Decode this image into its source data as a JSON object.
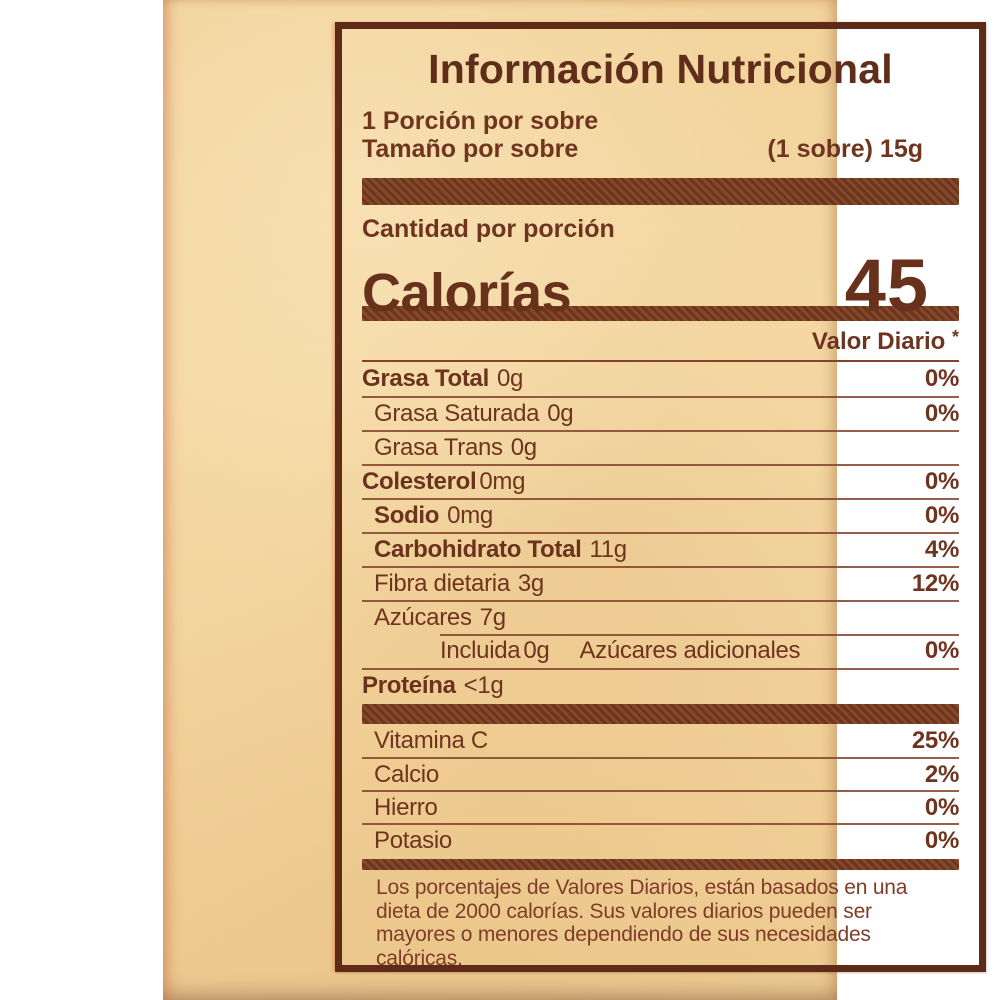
{
  "label": {
    "title": "Información Nutricional",
    "serving": {
      "per_container": "1 Porción por sobre",
      "size_label": "Tamaño por sobre",
      "size_value": "(1 sobre) 15g"
    },
    "amount_per_serving": "Cantidad por porción",
    "calories_label": "Calorías",
    "calories_value": "45",
    "daily_value_header": "Valor Diario",
    "daily_value_asterisk": "*",
    "nutrients": [
      {
        "name": "Grasa Total",
        "amount": "0g",
        "dv": "0%"
      },
      {
        "name": "Grasa Saturada",
        "amount": "0g",
        "dv": "0%"
      },
      {
        "name": "Grasa Trans",
        "amount": "0g",
        "dv": ""
      },
      {
        "name": "Colesterol",
        "amount": "0mg",
        "dv": "0%"
      },
      {
        "name": "Sodio",
        "amount": "0mg",
        "dv": "0%"
      },
      {
        "name": "Carbohidrato Total",
        "amount": "11g",
        "dv": "4%"
      },
      {
        "name": "Fibra dietaria",
        "amount": "3g",
        "dv": "12%"
      },
      {
        "name": "Azúcares",
        "amount": "7g",
        "dv": ""
      },
      {
        "name": "Incluida",
        "amount": "0g",
        "extra": "Azúcares adicionales",
        "dv": "0%"
      },
      {
        "name": "Proteína",
        "amount": "<1g",
        "dv": ""
      }
    ],
    "vitamins": [
      {
        "name": "Vitamina C",
        "dv": "25%"
      },
      {
        "name": "Calcio",
        "dv": "2%"
      },
      {
        "name": "Hierro",
        "dv": "0%"
      },
      {
        "name": "Potasio",
        "dv": "0%"
      }
    ],
    "footnote": "Los porcentajes de Valores Diarios, están basados en una dieta de 2000 calorías. Sus valores diarios pueden ser mayores o menores dependiendo de sus necesidades calóricas."
  },
  "colors": {
    "paper": "#f3d59e",
    "ink": "#6f341f",
    "border": "#5e2b19",
    "bar": "#74381e",
    "background": "#ffffff"
  }
}
